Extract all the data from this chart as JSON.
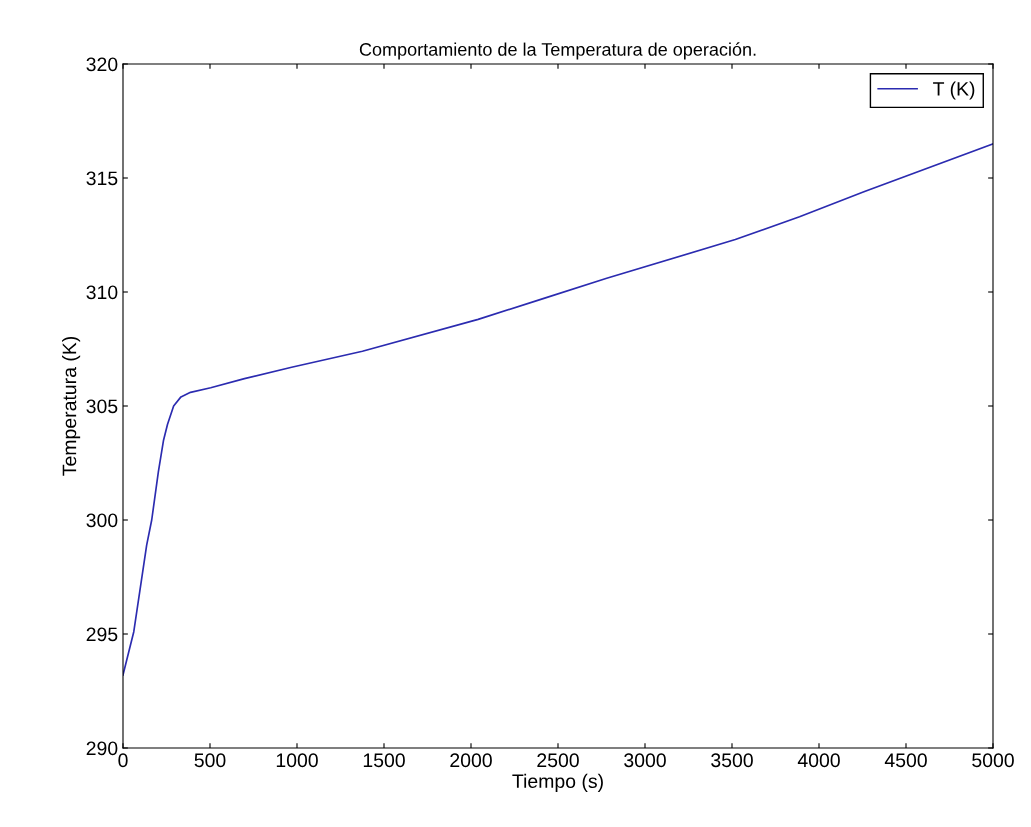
{
  "chart_data": {
    "type": "line",
    "title": "Comportamiento de la Temperatura de operación.",
    "xlabel": "Tiempo (s)",
    "ylabel": "Temperatura (K)",
    "series": [
      {
        "name": "T (K)",
        "color": "#2b2bb0",
        "x": [
          0,
          62,
          136,
          165,
          203,
          233,
          256,
          291,
          333,
          388,
          504,
          698,
          969,
          1376,
          2041,
          2410,
          2780,
          3519,
          3888,
          4258,
          5000
        ],
        "values": [
          293.2,
          295.1,
          298.9,
          300.0,
          302.1,
          303.5,
          304.2,
          305.0,
          305.4,
          305.6,
          305.8,
          306.2,
          306.7,
          307.4,
          308.8,
          309.7,
          310.6,
          312.3,
          313.3,
          314.4,
          316.5
        ]
      }
    ],
    "xlim": [
      0,
      5000
    ],
    "ylim": [
      290,
      320
    ],
    "xticks": [
      0,
      500,
      1000,
      1500,
      2000,
      2500,
      3000,
      3500,
      4000,
      4500,
      5000
    ],
    "yticks": [
      290,
      295,
      300,
      305,
      310,
      315,
      320
    ],
    "grid": false,
    "legend": "top right",
    "line_style": "solid",
    "marker": "none"
  }
}
